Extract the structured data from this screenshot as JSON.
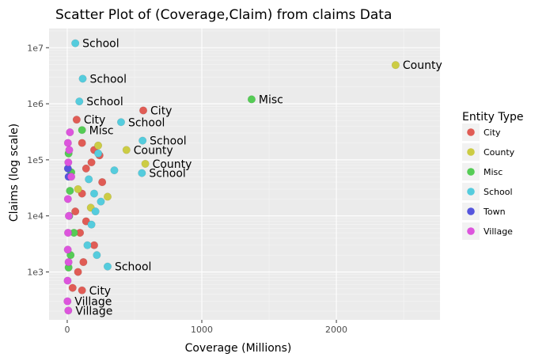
{
  "chart_data": {
    "type": "scatter",
    "title": "Scatter Plot of (Coverage,Claim) from claims Data",
    "xlabel": "Coverage (Millions)",
    "ylabel": "Claims (log scale)",
    "x_scale": "linear",
    "y_scale": "log10",
    "xlim": [
      -135,
      2770
    ],
    "ylim": [
      140,
      22000000
    ],
    "x_ticks": [
      {
        "v": 0,
        "label": "0"
      },
      {
        "v": 1000,
        "label": "1000"
      },
      {
        "v": 2000,
        "label": "2000"
      }
    ],
    "y_ticks": [
      {
        "v": 1000,
        "label": "1e3"
      },
      {
        "v": 10000,
        "label": "1e4"
      },
      {
        "v": 100000,
        "label": "1e5"
      },
      {
        "v": 1000000,
        "label": "1e6"
      },
      {
        "v": 10000000,
        "label": "1e7"
      }
    ],
    "grid": true,
    "legend": {
      "title": "Entity Type",
      "position": "right",
      "entries": [
        {
          "name": "City",
          "color": "#E05C55"
        },
        {
          "name": "County",
          "color": "#CCCC44"
        },
        {
          "name": "Misc",
          "color": "#55CC55"
        },
        {
          "name": "School",
          "color": "#55CCDD"
        },
        {
          "name": "Town",
          "color": "#5555DD"
        },
        {
          "name": "Village",
          "color": "#DD55DD"
        }
      ]
    },
    "series": [
      {
        "name": "City",
        "color": "#E05C55",
        "points": [
          [
            70,
            520000,
            "City"
          ],
          [
            565,
            760000,
            "City"
          ],
          [
            110,
            200000,
            ""
          ],
          [
            200,
            150000,
            ""
          ],
          [
            240,
            120000,
            ""
          ],
          [
            180,
            90000,
            ""
          ],
          [
            140,
            70000,
            ""
          ],
          [
            260,
            40000,
            ""
          ],
          [
            110,
            25000,
            ""
          ],
          [
            60,
            12000,
            ""
          ],
          [
            140,
            8000,
            ""
          ],
          [
            95,
            5000,
            ""
          ],
          [
            200,
            3000,
            ""
          ],
          [
            120,
            1500,
            ""
          ],
          [
            80,
            1000,
            ""
          ],
          [
            40,
            520,
            ""
          ],
          [
            110,
            470,
            "City"
          ]
        ]
      },
      {
        "name": "County",
        "color": "#CCCC44",
        "points": [
          [
            2440,
            4900000,
            "County"
          ],
          [
            580,
            85000,
            "County"
          ],
          [
            440,
            150000,
            "County"
          ],
          [
            230,
            180000,
            ""
          ],
          [
            175,
            14000,
            ""
          ],
          [
            300,
            22000,
            ""
          ],
          [
            80,
            30000,
            ""
          ]
        ]
      },
      {
        "name": "Misc",
        "color": "#55CC55",
        "points": [
          [
            1370,
            1200000,
            "Misc"
          ],
          [
            110,
            340000,
            "Misc"
          ],
          [
            10,
            130000,
            ""
          ],
          [
            30,
            60000,
            ""
          ],
          [
            20,
            28000,
            ""
          ],
          [
            15,
            10000,
            ""
          ],
          [
            50,
            5000,
            ""
          ],
          [
            25,
            2000,
            ""
          ],
          [
            10,
            1200,
            ""
          ]
        ]
      },
      {
        "name": "School",
        "color": "#55CCDD",
        "points": [
          [
            60,
            12000000,
            "School"
          ],
          [
            115,
            2800000,
            "School"
          ],
          [
            90,
            1100000,
            "School"
          ],
          [
            400,
            470000,
            "School"
          ],
          [
            560,
            220000,
            "School"
          ],
          [
            555,
            58000,
            "School"
          ],
          [
            350,
            65000,
            ""
          ],
          [
            230,
            130000,
            ""
          ],
          [
            160,
            45000,
            ""
          ],
          [
            200,
            25000,
            ""
          ],
          [
            250,
            18000,
            ""
          ],
          [
            210,
            12000,
            ""
          ],
          [
            180,
            7000,
            ""
          ],
          [
            300,
            1250,
            "School"
          ],
          [
            150,
            3000,
            ""
          ],
          [
            220,
            2000,
            ""
          ]
        ]
      },
      {
        "name": "Town",
        "color": "#5555DD",
        "points": [
          [
            5,
            70000,
            ""
          ],
          [
            10,
            50000,
            ""
          ]
        ]
      },
      {
        "name": "Village",
        "color": "#DD55DD",
        "points": [
          [
            20,
            310000,
            ""
          ],
          [
            5,
            200000,
            ""
          ],
          [
            15,
            150000,
            ""
          ],
          [
            8,
            90000,
            ""
          ],
          [
            30,
            50000,
            ""
          ],
          [
            5,
            20000,
            ""
          ],
          [
            12,
            10000,
            ""
          ],
          [
            6,
            5000,
            ""
          ],
          [
            4,
            2500,
            ""
          ],
          [
            10,
            1500,
            ""
          ],
          [
            3,
            700,
            ""
          ],
          [
            2,
            300,
            "Village"
          ],
          [
            8,
            205,
            "Village"
          ]
        ]
      }
    ]
  }
}
